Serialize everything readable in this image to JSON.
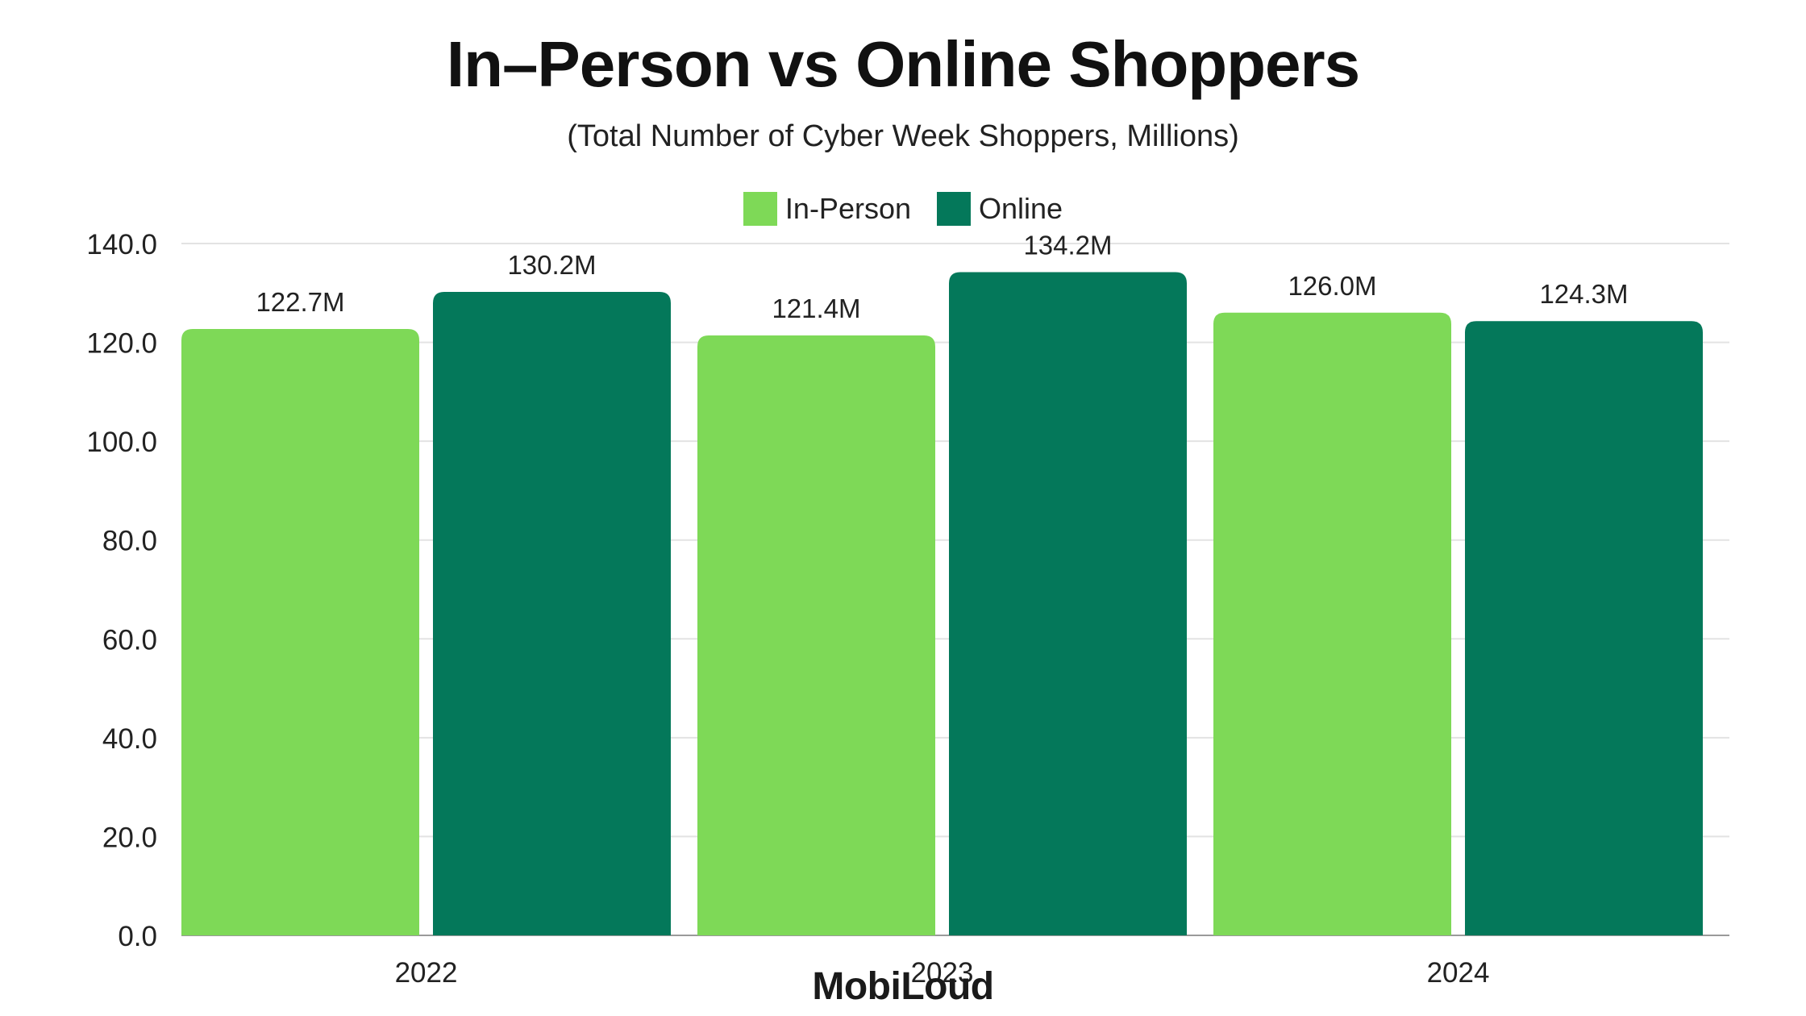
{
  "chart_data": {
    "type": "bar",
    "title": "In–Person vs Online Shoppers",
    "subtitle": "(Total Number of Cyber Week Shoppers, Millions)",
    "categories": [
      "2022",
      "2023",
      "2024"
    ],
    "series": [
      {
        "name": "In-Person",
        "color": "#7ed957",
        "values": [
          122.7,
          121.4,
          126.0
        ],
        "labels": [
          "122.7M",
          "121.4M",
          "126.0M"
        ]
      },
      {
        "name": "Online",
        "color": "#04785a",
        "values": [
          130.2,
          134.2,
          124.3
        ],
        "labels": [
          "130.2M",
          "134.2M",
          "124.3M"
        ]
      }
    ],
    "ylim": [
      0,
      140
    ],
    "yticks": [
      "0.0",
      "20.0",
      "40.0",
      "60.0",
      "80.0",
      "100.0",
      "120.0",
      "140.0"
    ],
    "grid": true,
    "legend_position": "top-center"
  },
  "brand": {
    "name": "MobiLoud"
  },
  "colors": {
    "in_person": "#7ed957",
    "online": "#04785a",
    "grid": "#e3e3e3"
  }
}
